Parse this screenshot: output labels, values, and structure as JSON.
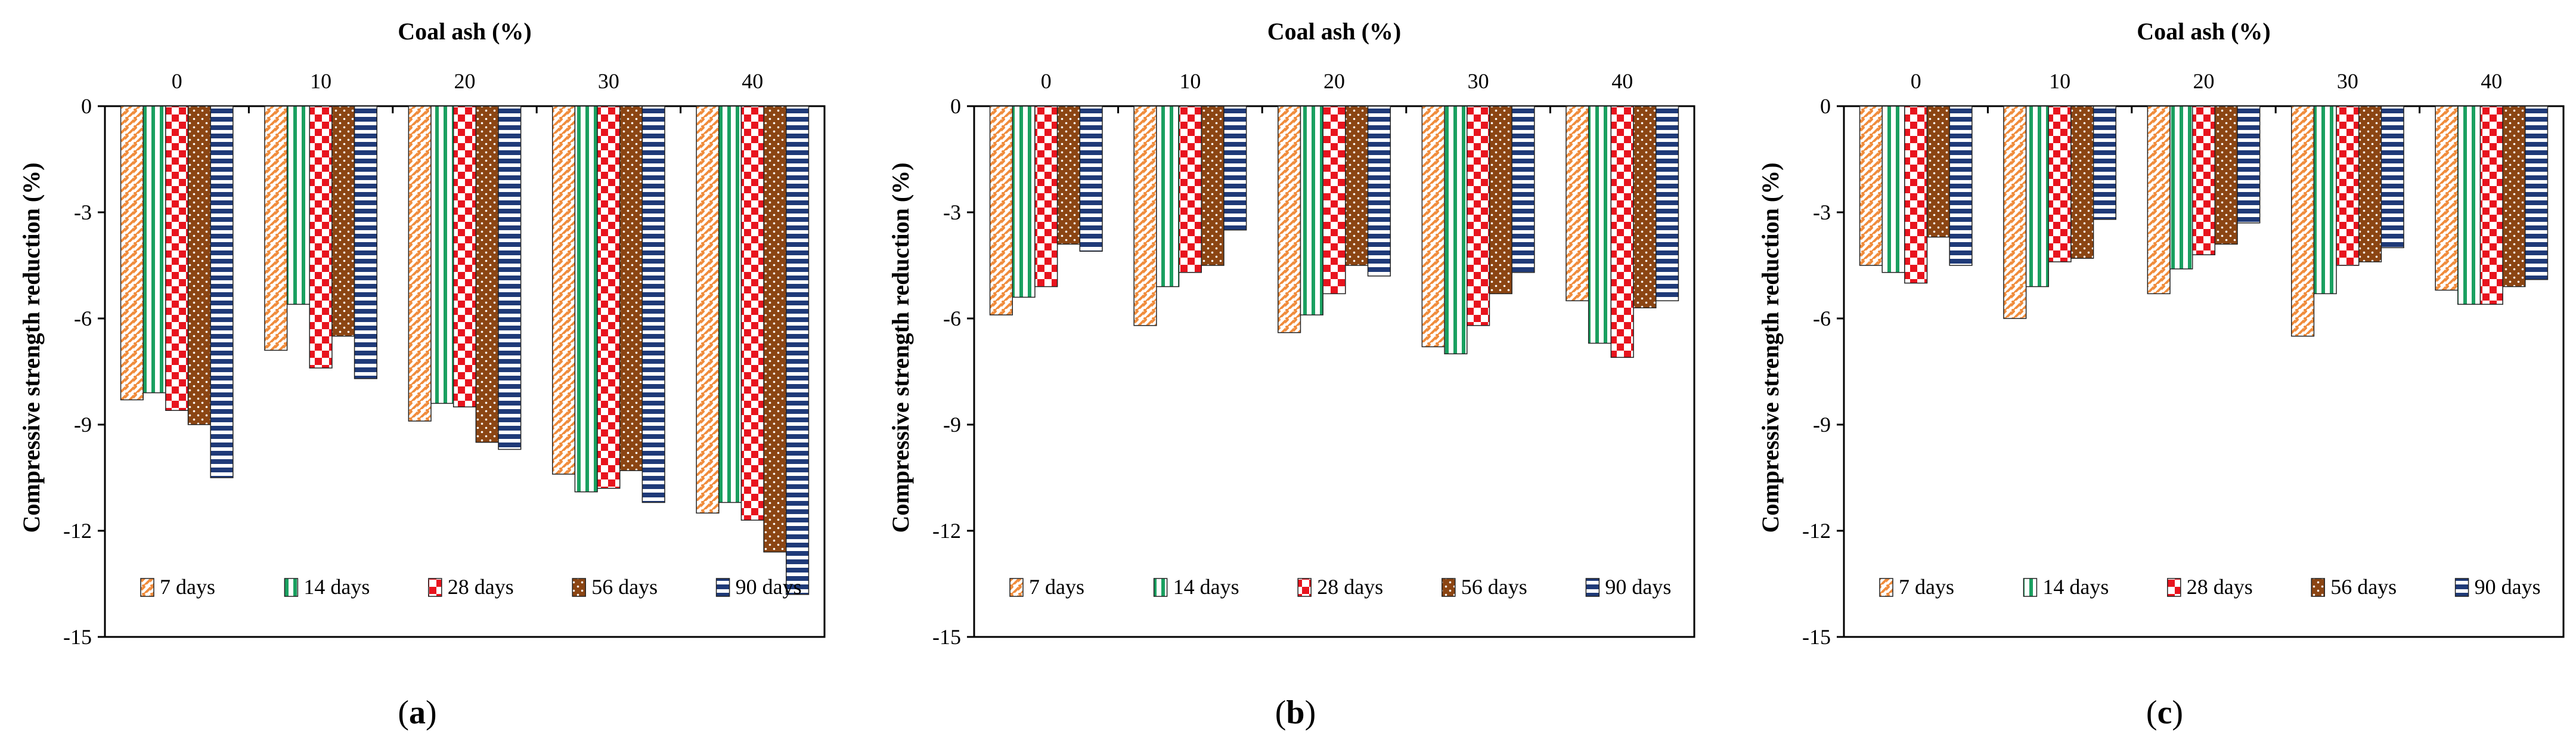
{
  "chart_data": [
    {
      "type": "bar",
      "panel_label": "a",
      "title": "",
      "xlabel": "Coal ash (%)",
      "ylabel": "Compressive strength reduction (%)",
      "ylim": [
        -15,
        0
      ],
      "yticks": [
        0,
        -3,
        -6,
        -9,
        -12,
        -15
      ],
      "x_axis_position": "top",
      "categories": [
        "0",
        "10",
        "20",
        "30",
        "40"
      ],
      "series": [
        {
          "name": "7 days",
          "values": [
            -8.3,
            -6.9,
            -8.9,
            -10.4,
            -11.5
          ]
        },
        {
          "name": "14 days",
          "values": [
            -8.1,
            -5.6,
            -8.4,
            -10.9,
            -11.2
          ]
        },
        {
          "name": "28 days",
          "values": [
            -8.6,
            -7.4,
            -8.5,
            -10.8,
            -11.7
          ]
        },
        {
          "name": "56 days",
          "values": [
            -9.0,
            -6.5,
            -9.5,
            -10.3,
            -12.6
          ]
        },
        {
          "name": "90 days",
          "values": [
            -10.5,
            -7.7,
            -9.7,
            -11.2,
            -13.8
          ]
        }
      ],
      "legend": "bottom-inside"
    },
    {
      "type": "bar",
      "panel_label": "b",
      "title": "",
      "xlabel": "Coal ash (%)",
      "ylabel": "Compressive strength reduction (%)",
      "ylim": [
        -15,
        0
      ],
      "yticks": [
        0,
        -3,
        -6,
        -9,
        -12,
        -15
      ],
      "x_axis_position": "top",
      "categories": [
        "0",
        "10",
        "20",
        "30",
        "40"
      ],
      "series": [
        {
          "name": "7 days",
          "values": [
            -5.9,
            -6.2,
            -6.4,
            -6.8,
            -5.5
          ]
        },
        {
          "name": "14 days",
          "values": [
            -5.4,
            -5.1,
            -5.9,
            -7.0,
            -6.7
          ]
        },
        {
          "name": "28 days",
          "values": [
            -5.1,
            -4.7,
            -5.3,
            -6.2,
            -7.1
          ]
        },
        {
          "name": "56 days",
          "values": [
            -3.9,
            -4.5,
            -4.5,
            -5.3,
            -5.7
          ]
        },
        {
          "name": "90 days",
          "values": [
            -4.1,
            -3.5,
            -4.8,
            -4.7,
            -5.5
          ]
        }
      ],
      "legend": "bottom-inside"
    },
    {
      "type": "bar",
      "panel_label": "c",
      "title": "",
      "xlabel": "Coal ash (%)",
      "ylabel": "Compressive strength reduction (%)",
      "ylim": [
        -15,
        0
      ],
      "yticks": [
        0,
        -3,
        -6,
        -9,
        -12,
        -15
      ],
      "x_axis_position": "top",
      "categories": [
        "0",
        "10",
        "20",
        "30",
        "40"
      ],
      "series": [
        {
          "name": "7 days",
          "values": [
            -4.5,
            -6.0,
            -5.3,
            -6.5,
            -5.2
          ]
        },
        {
          "name": "14 days",
          "values": [
            -4.7,
            -5.1,
            -4.6,
            -5.3,
            -5.6
          ]
        },
        {
          "name": "28 days",
          "values": [
            -5.0,
            -4.4,
            -4.2,
            -4.5,
            -5.6
          ]
        },
        {
          "name": "56 days",
          "values": [
            -3.7,
            -4.3,
            -3.9,
            -4.4,
            -5.1
          ]
        },
        {
          "name": "90 days",
          "values": [
            -4.5,
            -3.2,
            -3.3,
            -4.0,
            -4.9
          ]
        }
      ],
      "legend": "bottom-inside"
    }
  ],
  "captions": [
    "(a)",
    "(b)",
    "(c)"
  ],
  "series_styles": [
    {
      "pattern": "diagonal-dash",
      "color": "#f08c3c"
    },
    {
      "pattern": "vertical-stripe",
      "color": "#1aa060"
    },
    {
      "pattern": "checker",
      "color": "#e8141e"
    },
    {
      "pattern": "dots",
      "color": "#8b4513"
    },
    {
      "pattern": "horizontal-stripe",
      "color": "#1f3a78"
    }
  ]
}
